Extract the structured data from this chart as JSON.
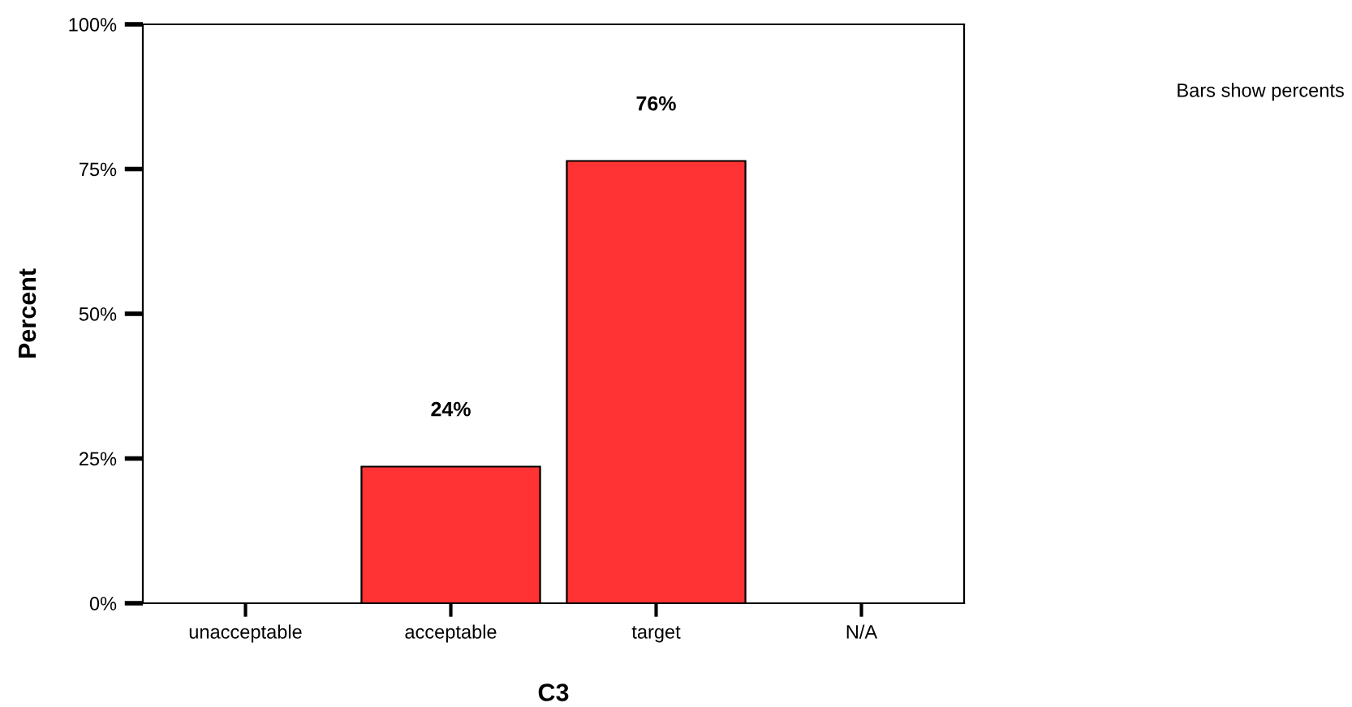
{
  "chart_data": {
    "type": "bar",
    "xlabel": "C3",
    "ylabel": "Percent",
    "categories": [
      "unacceptable",
      "acceptable",
      "target",
      "N/A"
    ],
    "values": [
      null,
      23.6,
      76.4,
      null
    ],
    "value_labels": [
      null,
      "24%",
      "76%",
      null
    ],
    "color": "#ff3333",
    "ylim": [
      0,
      100
    ],
    "yticks": [
      {
        "value": 0,
        "label": "0%"
      },
      {
        "value": 25,
        "label": "25%"
      },
      {
        "value": 50,
        "label": "50%"
      },
      {
        "value": 75,
        "label": "75%"
      },
      {
        "value": 100,
        "label": "100%"
      }
    ],
    "grid": false,
    "legend": false,
    "annotations": [
      "Bars show percents"
    ]
  }
}
